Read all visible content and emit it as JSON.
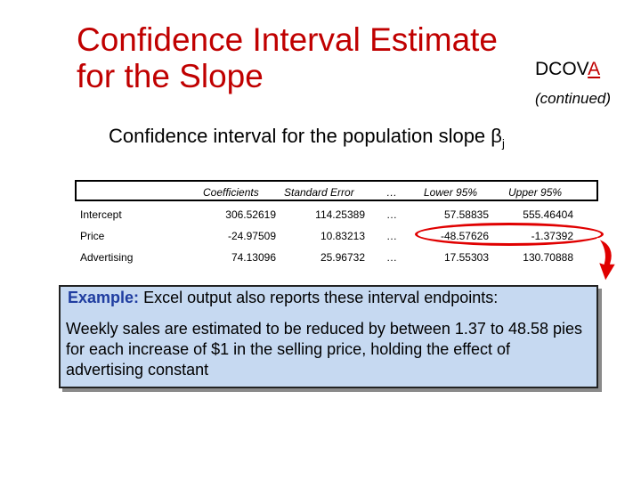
{
  "title": {
    "line1": "Confidence Interval Estimate",
    "line2": "for the Slope"
  },
  "badge": {
    "prefix": "DCOV",
    "accent": "A",
    "accent_color": "#c00000"
  },
  "continued": "(continued)",
  "subtitle": {
    "text": "Confidence interval for the population slope β",
    "subscript": "j"
  },
  "table": {
    "headers": [
      "Coefficients",
      "Standard Error",
      "…",
      "Lower 95%",
      "Upper 95%"
    ],
    "rows": [
      {
        "label": "Intercept",
        "coefficient": "306.52619",
        "std_error": "114.25389",
        "ellipsis": "…",
        "lower": "57.58835",
        "upper": "555.46404"
      },
      {
        "label": "Price",
        "coefficient": "-24.97509",
        "std_error": "10.83213",
        "ellipsis": "…",
        "lower": "-48.57626",
        "upper": "-1.37392"
      },
      {
        "label": "Advertising",
        "coefficient": "74.13096",
        "std_error": "25.96732",
        "ellipsis": "…",
        "lower": "17.55303",
        "upper": "130.70888"
      }
    ]
  },
  "example": {
    "label": "Example:",
    "line1": "Excel output also reports these interval endpoints:",
    "paragraph": "Weekly sales are estimated to be reduced by between 1.37 to 48.58 pies for each increase of $1 in the selling price, holding the effect of advertising constant"
  },
  "colors": {
    "title": "#c00000",
    "highlight_oval": "#e00000",
    "example_bg": "#c6d9f1",
    "example_label": "#1f3da0"
  }
}
